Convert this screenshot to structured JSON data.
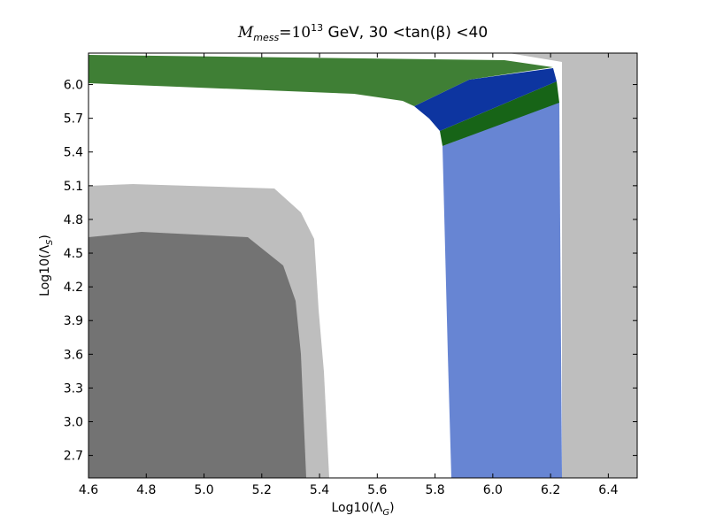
{
  "chart_data": {
    "type": "region",
    "title": [
      "M",
      "mess",
      "=10",
      "13",
      " GeV, 30 <tan(β) <40"
    ],
    "xlabel": [
      "Log10(Λ",
      "G",
      ")"
    ],
    "ylabel": [
      "Log10(Λ",
      "S",
      ")"
    ],
    "xlim": [
      4.6,
      6.5
    ],
    "ylim": [
      2.5,
      6.28
    ],
    "xticks": [
      4.6,
      4.8,
      {
        "value": 5,
        "label": "5.0"
      },
      5.2,
      5.4,
      5.6,
      5.8,
      {
        "value": 6,
        "label": "6.0"
      },
      6.2,
      6.4
    ],
    "yticks": [
      2.7,
      {
        "value": 3,
        "label": "3.0"
      },
      3.3,
      3.6,
      3.9,
      4.2,
      4.5,
      4.8,
      5.1,
      5.4,
      5.7,
      {
        "value": 6,
        "label": "6.0"
      }
    ]
  }
}
